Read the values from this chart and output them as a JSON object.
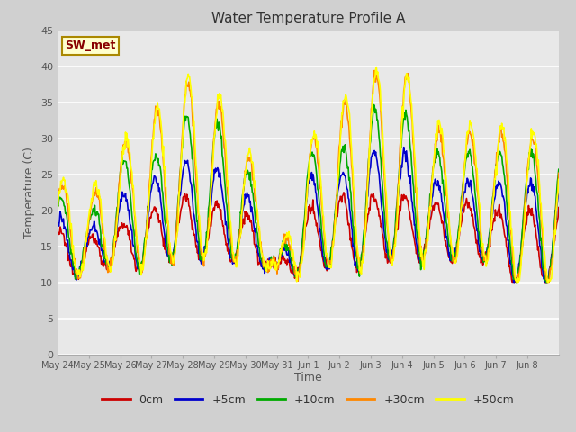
{
  "title": "Water Temperature Profile A",
  "xlabel": "Time",
  "ylabel": "Temperature (C)",
  "ylim": [
    0,
    45
  ],
  "yticks": [
    0,
    5,
    10,
    15,
    20,
    25,
    30,
    35,
    40,
    45
  ],
  "legend_label": "SW_met",
  "legend_box_facecolor": "#ffffcc",
  "legend_box_edgecolor": "#aa8800",
  "legend_text_color": "#880000",
  "fig_facecolor": "#d0d0d0",
  "plot_facecolor": "#e8e8e8",
  "grid_color": "#ffffff",
  "series_colors": [
    "#cc0000",
    "#0000cc",
    "#00aa00",
    "#ff8800",
    "#ffff00"
  ],
  "series_labels": [
    "0cm",
    "+5cm",
    "+10cm",
    "+30cm",
    "+50cm"
  ],
  "x_tick_labels": [
    "May 24",
    "May 25",
    "May 26",
    "May 27",
    "May 28",
    "May 29",
    "May 30",
    "May 31",
    "Jun 1",
    "Jun 2",
    "Jun 3",
    "Jun 4",
    "Jun 5",
    "Jun 6",
    "Jun 7",
    "Jun 8"
  ],
  "n_days": 16,
  "n_points_per_day": 48
}
